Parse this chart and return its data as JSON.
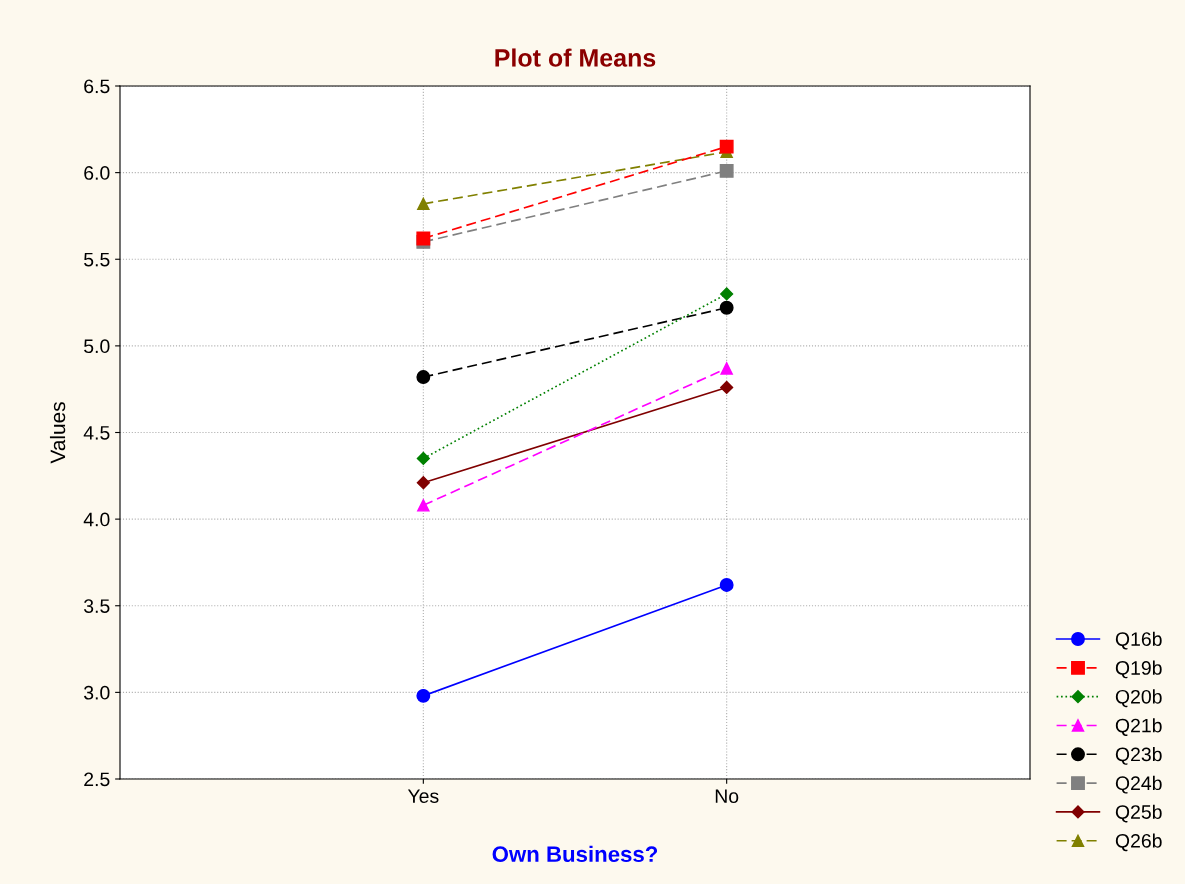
{
  "chart_data": {
    "type": "line",
    "title": "Plot of Means",
    "xlabel": "Own Business?",
    "ylabel": "Values",
    "categories": [
      "Yes",
      "No"
    ],
    "ylim": [
      2.5,
      6.5
    ],
    "yticks": [
      {
        "value": 2.5,
        "label": "2.5"
      },
      {
        "value": 3,
        "label": "3.0"
      },
      {
        "value": 3.5,
        "label": "3.5"
      },
      {
        "value": 4,
        "label": "4.0"
      },
      {
        "value": 4.5,
        "label": "4.5"
      },
      {
        "value": 5,
        "label": "5.0"
      },
      {
        "value": 5.5,
        "label": "5.5"
      },
      {
        "value": 6,
        "label": "6.0"
      },
      {
        "value": 6.5,
        "label": "6.5"
      }
    ],
    "grid": true,
    "legend": "bottom right",
    "series": [
      {
        "name": "Q16b",
        "color": "#0000ff",
        "values": [
          2.98,
          3.62
        ],
        "marker": "circle",
        "line_style": "solid"
      },
      {
        "name": "Q19b",
        "color": "#ff0000",
        "values": [
          5.62,
          6.15
        ],
        "marker": "square",
        "line_style": "dashed"
      },
      {
        "name": "Q20b",
        "color": "#008000",
        "values": [
          4.35,
          5.3
        ],
        "marker": "diamond",
        "line_style": "dotted"
      },
      {
        "name": "Q21b",
        "color": "#ff00ff",
        "values": [
          4.08,
          4.87
        ],
        "marker": "triangle",
        "line_style": "dashed"
      },
      {
        "name": "Q23b",
        "color": "#000000",
        "values": [
          4.82,
          5.22
        ],
        "marker": "circle",
        "line_style": "dashed"
      },
      {
        "name": "Q24b",
        "color": "#808080",
        "values": [
          5.6,
          6.01
        ],
        "marker": "square",
        "line_style": "dashed"
      },
      {
        "name": "Q25b",
        "color": "#800000",
        "values": [
          4.21,
          4.76
        ],
        "marker": "diamond",
        "line_style": "solid"
      },
      {
        "name": "Q26b",
        "color": "#808000",
        "values": [
          5.82,
          6.12
        ],
        "marker": "triangle",
        "line_style": "dashed"
      }
    ]
  }
}
